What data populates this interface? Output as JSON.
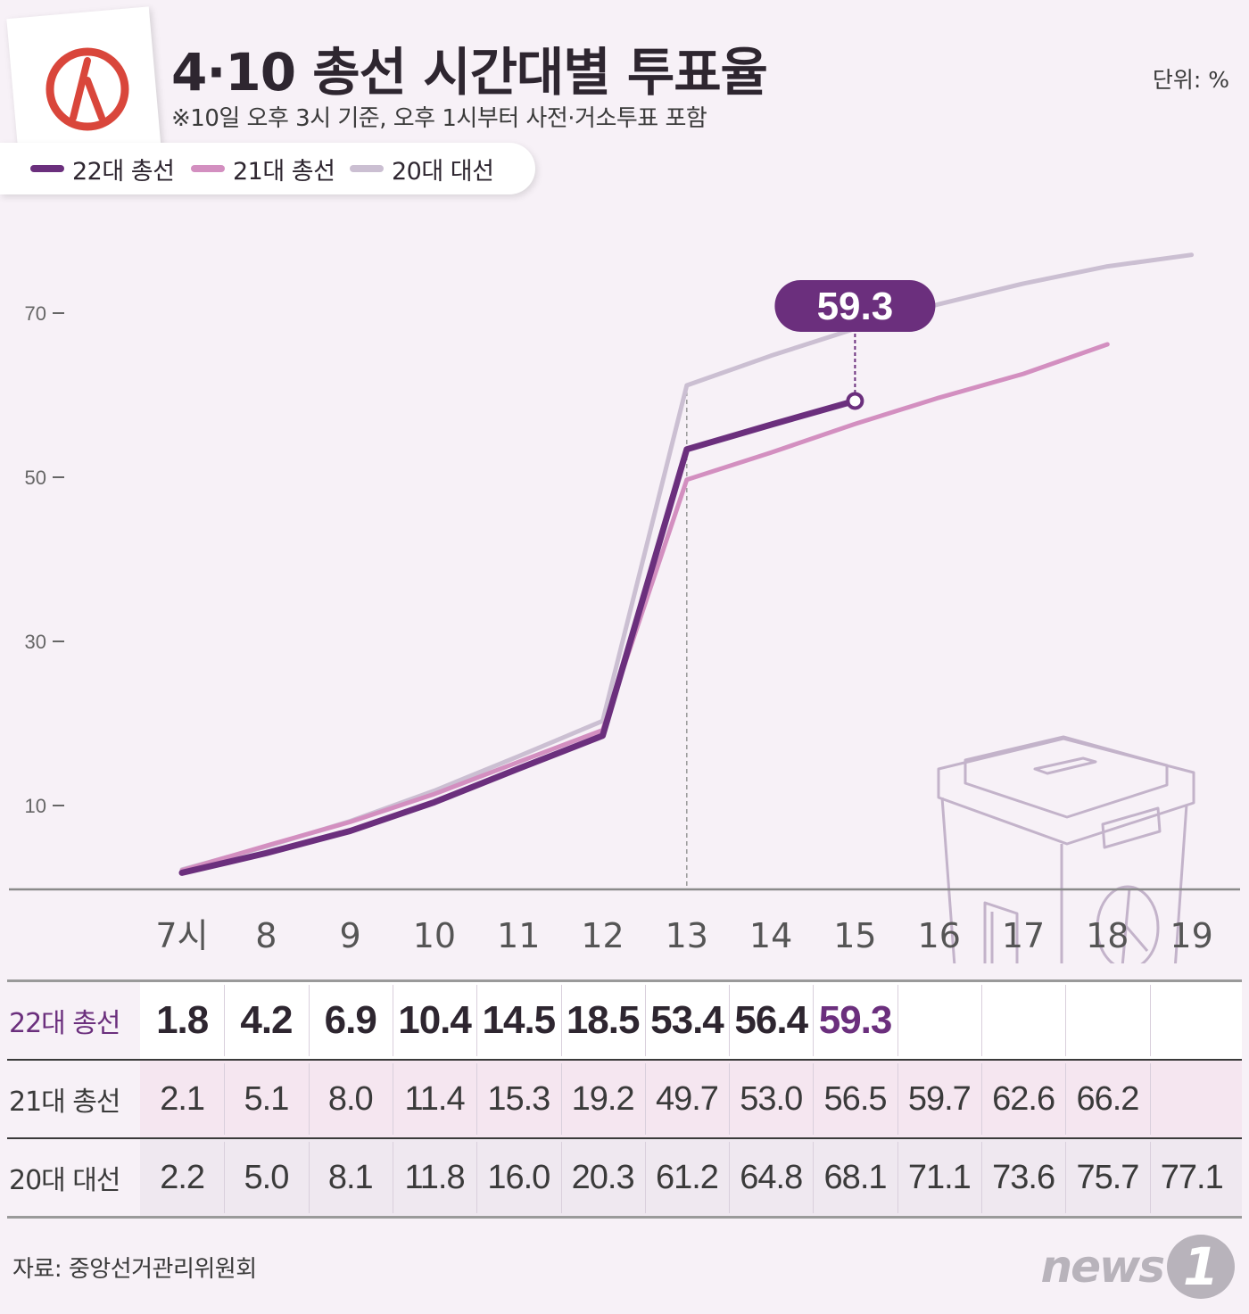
{
  "header": {
    "title": "4·10 총선 시간대별 투표율",
    "subtitle": "※10일 오후 3시 기준, 오후 1시부터 사전·거소투표 포함",
    "unit": "단위: %"
  },
  "colors": {
    "s22": "#6b2f7d",
    "s21": "#d38fc0",
    "s20": "#cbbfd2",
    "logo_red": "#d9463b",
    "background": "#f7f1f7"
  },
  "icons": [
    "ballot-logo-icon",
    "ballot-box-icon"
  ],
  "chart_data": {
    "type": "line",
    "x": [
      "7시",
      "8",
      "9",
      "10",
      "11",
      "12",
      "13",
      "14",
      "15",
      "16",
      "17",
      "18",
      "19"
    ],
    "yticks": [
      10,
      30,
      50,
      70
    ],
    "ylim": [
      0,
      80
    ],
    "grid": false,
    "legend_position": "top-left",
    "series": [
      {
        "name": "22대 총선",
        "color": "#6b2f7d",
        "values": [
          1.8,
          4.2,
          6.9,
          10.4,
          14.5,
          18.5,
          53.4,
          56.4,
          59.3,
          null,
          null,
          null,
          null
        ]
      },
      {
        "name": "21대 총선",
        "color": "#d38fc0",
        "values": [
          2.1,
          5.1,
          8.0,
          11.4,
          15.3,
          19.2,
          49.7,
          53.0,
          56.5,
          59.7,
          62.6,
          66.2,
          null
        ]
      },
      {
        "name": "20대 대선",
        "color": "#cbbfd2",
        "values": [
          2.2,
          5.0,
          8.1,
          11.8,
          16.0,
          20.3,
          61.2,
          64.8,
          68.1,
          71.1,
          73.6,
          75.7,
          77.1
        ]
      }
    ],
    "callout": {
      "series": "22대 총선",
      "x": "15",
      "label": "59.3"
    },
    "reference_line_x": "13"
  },
  "table": {
    "rows": [
      {
        "label": "22대 총선",
        "cells": [
          "1.8",
          "4.2",
          "6.9",
          "10.4",
          "14.5",
          "18.5",
          "53.4",
          "56.4",
          "59.3",
          "",
          "",
          "",
          ""
        ]
      },
      {
        "label": "21대 총선",
        "cells": [
          "2.1",
          "5.1",
          "8.0",
          "11.4",
          "15.3",
          "19.2",
          "49.7",
          "53.0",
          "56.5",
          "59.7",
          "62.6",
          "66.2",
          ""
        ]
      },
      {
        "label": "20대 대선",
        "cells": [
          "2.2",
          "5.0",
          "8.1",
          "11.8",
          "16.0",
          "20.3",
          "61.2",
          "64.8",
          "68.1",
          "71.1",
          "73.6",
          "75.7",
          "77.1"
        ]
      }
    ]
  },
  "footer": {
    "source": "자료: 중앙선거관리위원회",
    "brand_text": "news",
    "brand_badge": "1"
  }
}
